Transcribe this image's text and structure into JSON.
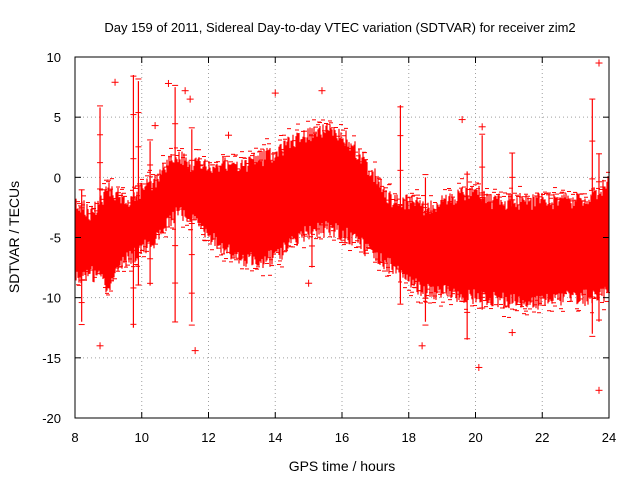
{
  "chart_data": {
    "type": "scatter",
    "title": "Day 159 of 2011, Sidereal Day-to-day VTEC variation (SDTVAR) for receiver zim2",
    "xlabel": "GPS time / hours",
    "ylabel": "SDTVAR / TECUs",
    "xlim": [
      8,
      24
    ],
    "ylim": [
      -20,
      10
    ],
    "x_ticks": [
      8,
      10,
      12,
      14,
      16,
      18,
      20,
      22,
      24
    ],
    "y_ticks": [
      -20,
      -15,
      -10,
      -5,
      0,
      5,
      10
    ],
    "grid": true,
    "marker": "+",
    "color": "#ff0000",
    "band_envelope": {
      "name": "SDTVAR spread (dense cloud of points)",
      "x": [
        8.0,
        8.5,
        9.0,
        9.5,
        10.0,
        10.5,
        11.0,
        11.5,
        12.0,
        12.5,
        13.0,
        13.5,
        14.0,
        14.5,
        15.0,
        15.5,
        16.0,
        16.5,
        17.0,
        17.5,
        18.0,
        18.5,
        19.0,
        19.5,
        20.0,
        20.5,
        21.0,
        21.5,
        22.0,
        22.5,
        23.0,
        23.5,
        24.0
      ],
      "upper": [
        -2.0,
        -3.0,
        -1.0,
        -2.0,
        -1.0,
        0.0,
        2.0,
        1.0,
        1.0,
        1.0,
        1.0,
        1.5,
        2.0,
        3.0,
        3.6,
        4.0,
        3.6,
        2.0,
        0.0,
        -2.0,
        -2.0,
        -2.5,
        -2.0,
        -1.5,
        -1.0,
        -2.0,
        -2.0,
        -2.0,
        -2.0,
        -2.0,
        -2.0,
        -1.5,
        -0.5
      ],
      "lower": [
        -8.5,
        -8.0,
        -9.0,
        -7.0,
        -6.0,
        -5.0,
        -3.0,
        -3.5,
        -5.0,
        -6.0,
        -6.7,
        -6.9,
        -6.7,
        -5.5,
        -4.5,
        -4.3,
        -4.6,
        -5.5,
        -6.5,
        -7.5,
        -8.5,
        -9.5,
        -9.5,
        -10.0,
        -10.0,
        -10.2,
        -10.3,
        -10.3,
        -10.3,
        -10.0,
        -10.0,
        -10.0,
        -9.5
      ]
    },
    "outlier_spikes": [
      {
        "x": 8.2,
        "ymin": -12.0,
        "ymax": -1.0
      },
      {
        "x": 8.75,
        "ymin": -8.0,
        "ymax": 5.8
      },
      {
        "x": 9.75,
        "ymin": -12.5,
        "ymax": 8.5
      },
      {
        "x": 9.9,
        "ymin": -9.0,
        "ymax": 8.0
      },
      {
        "x": 10.25,
        "ymin": -9.0,
        "ymax": 3.0
      },
      {
        "x": 11.0,
        "ymin": -12.0,
        "ymax": 7.5
      },
      {
        "x": 11.5,
        "ymin": -12.0,
        "ymax": 4.0
      },
      {
        "x": 15.1,
        "ymin": -7.5,
        "ymax": 3.5
      },
      {
        "x": 17.75,
        "ymin": -10.5,
        "ymax": 6.0
      },
      {
        "x": 18.5,
        "ymin": -12.0,
        "ymax": 0.0
      },
      {
        "x": 19.75,
        "ymin": -13.5,
        "ymax": 0.5
      },
      {
        "x": 20.2,
        "ymin": -11.0,
        "ymax": 3.5
      },
      {
        "x": 21.1,
        "ymin": -9.0,
        "ymax": 2.0
      },
      {
        "x": 23.5,
        "ymin": -13.0,
        "ymax": 6.5
      },
      {
        "x": 23.7,
        "ymin": -12.0,
        "ymax": 2.0
      }
    ],
    "isolated_points": [
      {
        "x": 8.75,
        "y": -14.0
      },
      {
        "x": 9.2,
        "y": 7.9
      },
      {
        "x": 10.8,
        "y": 7.8
      },
      {
        "x": 11.3,
        "y": 7.2
      },
      {
        "x": 11.6,
        "y": -14.4
      },
      {
        "x": 11.45,
        "y": 6.5
      },
      {
        "x": 14.0,
        "y": 7.0
      },
      {
        "x": 15.4,
        "y": 7.2
      },
      {
        "x": 15.0,
        "y": -8.8
      },
      {
        "x": 18.4,
        "y": -14.0
      },
      {
        "x": 19.6,
        "y": 4.8
      },
      {
        "x": 20.1,
        "y": -15.8
      },
      {
        "x": 20.2,
        "y": 4.2
      },
      {
        "x": 21.1,
        "y": -12.9
      },
      {
        "x": 23.7,
        "y": 9.5
      },
      {
        "x": 23.7,
        "y": -17.7
      },
      {
        "x": 12.6,
        "y": 3.5
      },
      {
        "x": 10.4,
        "y": 4.3
      }
    ]
  }
}
